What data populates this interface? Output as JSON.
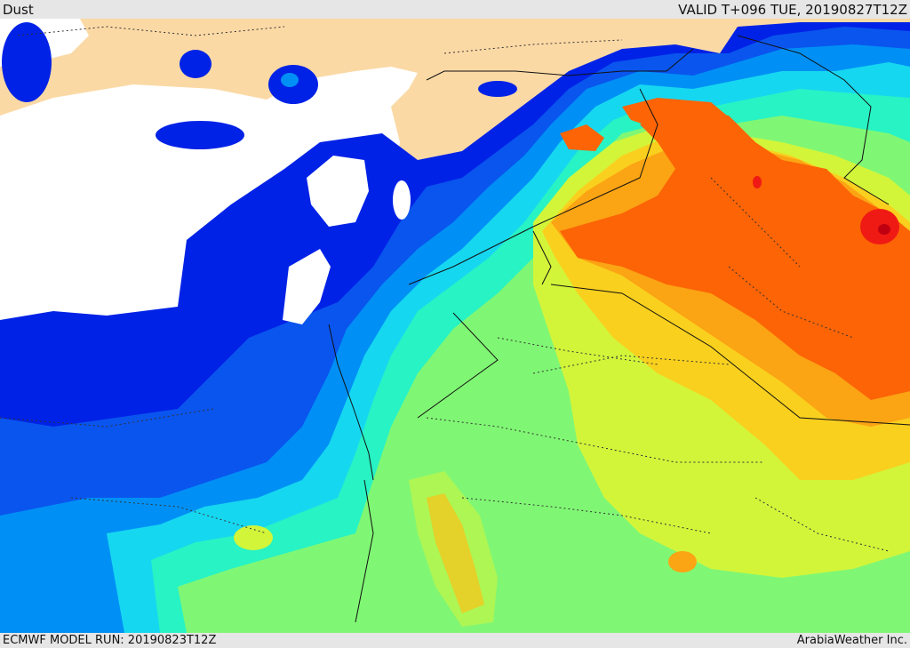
{
  "header": {
    "field_name": "Dust",
    "valid_time": "VALID T+096 TUE, 20190827T12Z"
  },
  "footer": {
    "model_run": "ECMWF MODEL RUN: 20190823T12Z",
    "credit": "ArabiaWeather Inc."
  },
  "map": {
    "colors": {
      "land": "#fbd9a5",
      "water": "#ffffff",
      "blue_dark": "#0022e6",
      "blue": "#0a55ee",
      "blue_mid": "#0090f5",
      "cyan": "#16d7f0",
      "teal": "#27f3c4",
      "green": "#80f774",
      "lime": "#d2f53a",
      "yellow": "#f9d01e",
      "orange": "#fba414",
      "orange_dark": "#fc6406",
      "red": "#f01a14",
      "dark_red": "#c00010"
    }
  }
}
